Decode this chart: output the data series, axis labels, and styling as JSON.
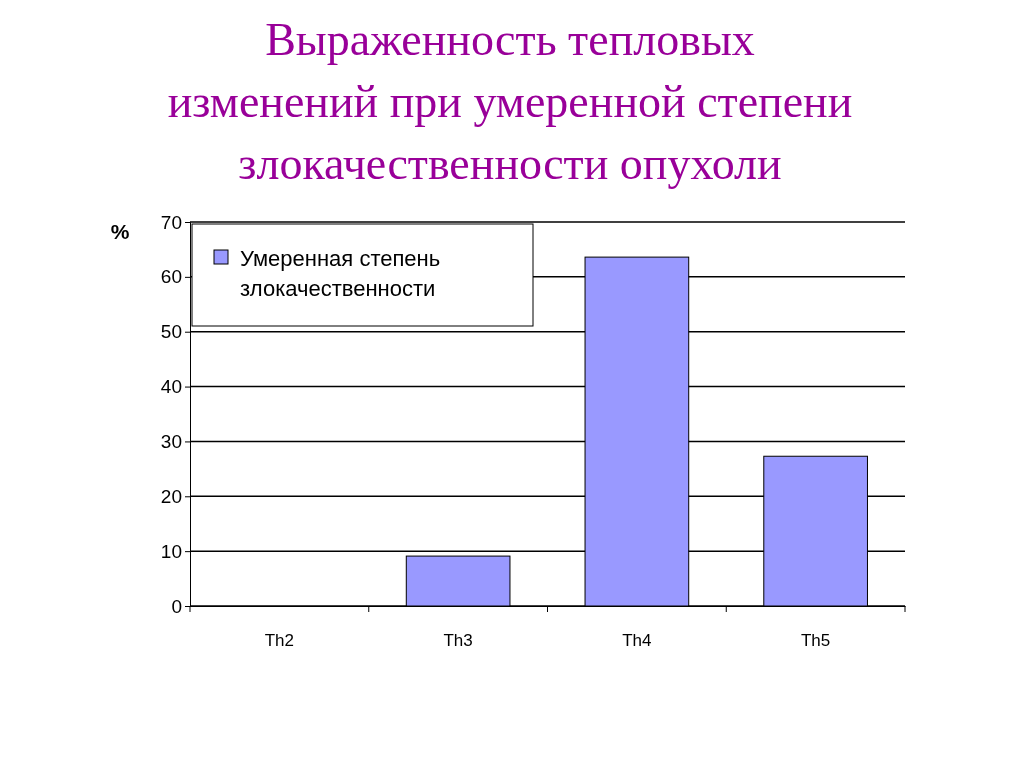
{
  "chart_data": {
    "type": "bar",
    "title": "Выраженность тепловых\nизменений при умеренной степени\nзлокачественности опухоли",
    "ylabel": "%",
    "categories": [
      "Th2",
      "Th3",
      "Th4",
      "Th5"
    ],
    "series": [
      {
        "name": "Умеренная степень злокачественности",
        "color": "#9999ff",
        "values": [
          0,
          9.1,
          63.6,
          27.3
        ]
      }
    ],
    "ylim": [
      0,
      70
    ],
    "yticks": [
      0,
      10,
      20,
      30,
      40,
      50,
      60,
      70
    ],
    "grid": "y",
    "legend": "top left"
  }
}
